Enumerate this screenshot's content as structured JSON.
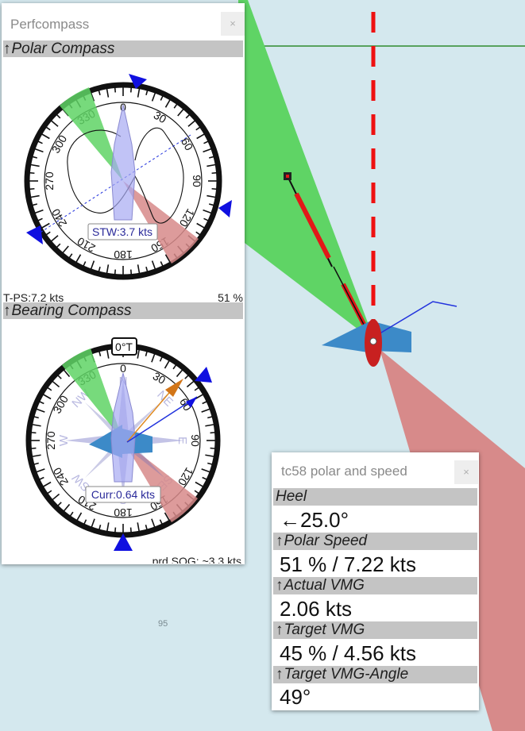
{
  "map": {
    "label": "95"
  },
  "perfcompass": {
    "title": "Perfcompass",
    "close_label": "×",
    "polar": {
      "header": "Polar Compass",
      "stw_label": "STW:3.7 kts",
      "tps_label": "T-PS:7.2 kts",
      "percent_label": "51 %",
      "ticks": [
        "0",
        "30",
        "60",
        "90",
        "120",
        "150",
        "180",
        "210",
        "240",
        "270",
        "300",
        "330"
      ]
    },
    "bearing": {
      "header": "Bearing Compass",
      "heading_label": "0°T",
      "curr_label": "Curr:0.64 kts",
      "sog_label": "prd.SOG: ~3.3 kts",
      "ticks": [
        "0",
        "30",
        "60",
        "90",
        "120",
        "150",
        "180",
        "210",
        "240",
        "270",
        "300",
        "330"
      ],
      "cardinals": [
        "N",
        "NE",
        "E",
        "SE",
        "S",
        "SW",
        "W",
        "NW"
      ]
    }
  },
  "tc58": {
    "title": "tc58 polar and speed",
    "close_label": "×",
    "heel_label": "Heel",
    "heel_value": "←25.0°",
    "polar_speed_label": "Polar Speed",
    "polar_speed_value": "51 % / 7.22 kts",
    "actual_vmg_label": "Actual VMG",
    "actual_vmg_value": "2.06 kts",
    "target_vmg_label": "Target VMG",
    "target_vmg_value": "45 % / 4.56 kts",
    "target_vmg_angle_label": "Target VMG-Angle",
    "target_vmg_angle_value": "49°"
  }
}
